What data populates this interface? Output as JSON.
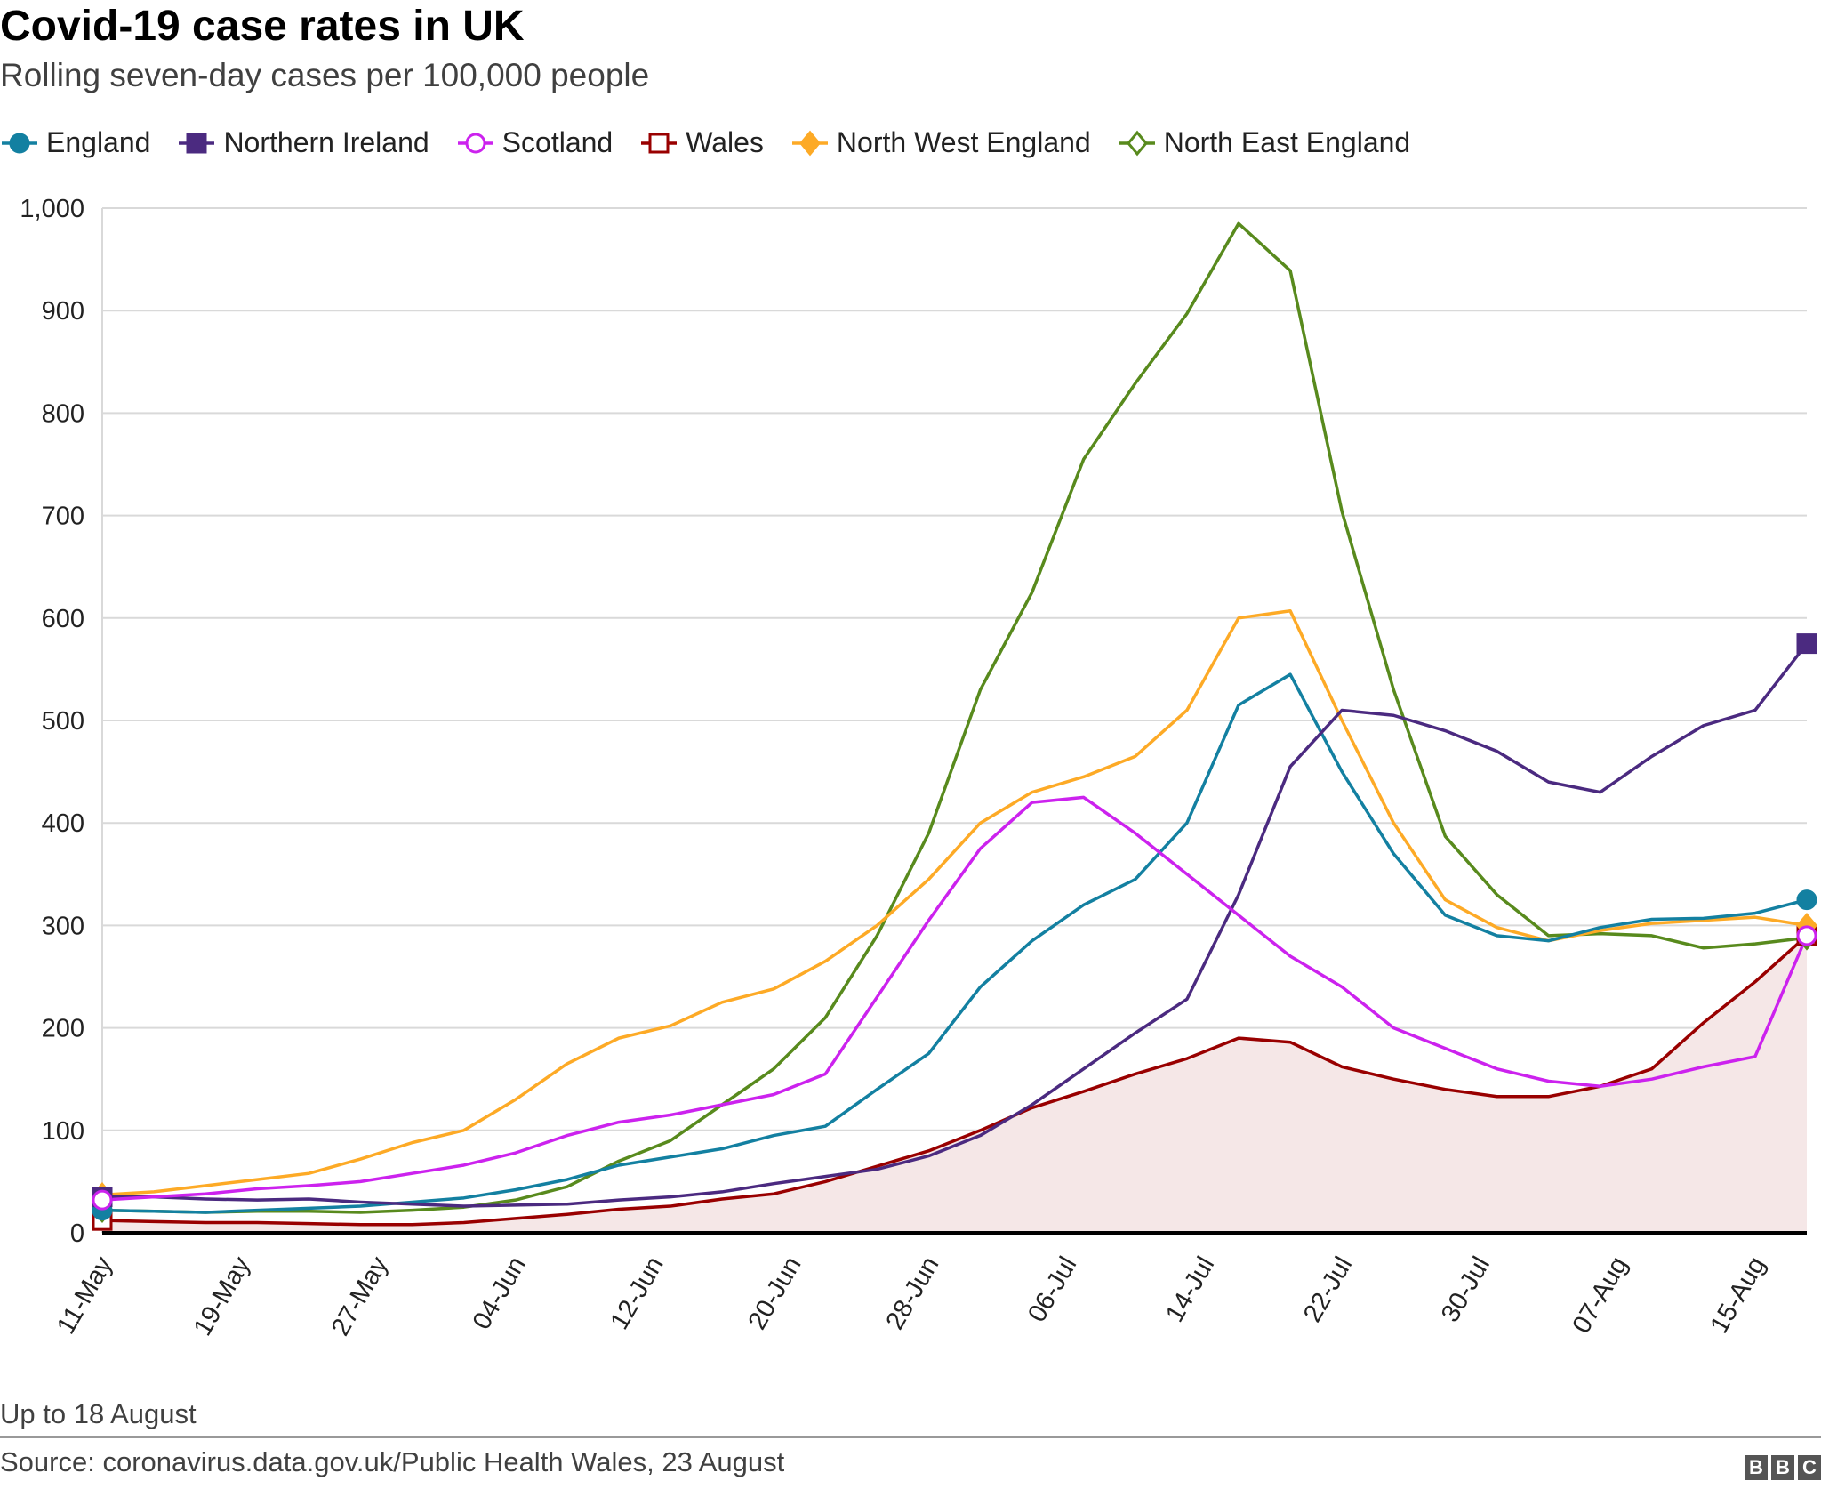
{
  "chart_data": {
    "type": "line",
    "title": "Covid-19 case rates in UK",
    "subtitle": "Rolling seven-day cases per 100,000 people",
    "note": "Up to 18 August",
    "source": "Source: coronavirus.data.gov.uk/Public Health Wales, 23 August",
    "logo": "BBC",
    "ylim": [
      0,
      1000
    ],
    "yticks": [
      0,
      100,
      200,
      300,
      400,
      500,
      600,
      700,
      800,
      900,
      1000
    ],
    "ytick_labels": [
      "0",
      "100",
      "200",
      "300",
      "400",
      "500",
      "600",
      "700",
      "800",
      "900",
      "1,000"
    ],
    "xlim": [
      "11-May",
      "18-Aug"
    ],
    "xtick_labels": [
      "11-May",
      "19-May",
      "27-May",
      "04-Jun",
      "12-Jun",
      "20-Jun",
      "28-Jun",
      "06-Jul",
      "14-Jul",
      "22-Jul",
      "30-Jul",
      "07-Aug",
      "15-Aug"
    ],
    "grid": true,
    "legend_position": "top",
    "x": [
      "11-May",
      "14-May",
      "17-May",
      "20-May",
      "23-May",
      "26-May",
      "29-May",
      "01-Jun",
      "04-Jun",
      "07-Jun",
      "10-Jun",
      "13-Jun",
      "16-Jun",
      "19-Jun",
      "22-Jun",
      "25-Jun",
      "28-Jun",
      "01-Jul",
      "04-Jul",
      "07-Jul",
      "10-Jul",
      "13-Jul",
      "16-Jul",
      "19-Jul",
      "22-Jul",
      "25-Jul",
      "28-Jul",
      "31-Jul",
      "03-Aug",
      "06-Aug",
      "09-Aug",
      "12-Aug",
      "15-Aug",
      "18-Aug"
    ],
    "series": [
      {
        "name": "England",
        "color": "#1380a1",
        "marker": "circle-filled",
        "values": [
          22,
          21,
          20,
          22,
          24,
          26,
          30,
          34,
          42,
          52,
          66,
          74,
          82,
          95,
          104,
          140,
          175,
          240,
          285,
          320,
          345,
          400,
          515,
          545,
          450,
          370,
          310,
          290,
          285,
          298,
          306,
          307,
          312,
          325
        ]
      },
      {
        "name": "Northern Ireland",
        "color": "#4b2a80",
        "marker": "square-filled",
        "values": [
          35,
          35,
          33,
          32,
          33,
          30,
          28,
          26,
          27,
          28,
          32,
          35,
          40,
          48,
          55,
          62,
          75,
          95,
          125,
          160,
          195,
          228,
          330,
          455,
          510,
          505,
          490,
          470,
          440,
          430,
          465,
          495,
          510,
          575
        ]
      },
      {
        "name": "Scotland",
        "color": "#cc22ee",
        "marker": "circle-open",
        "values": [
          32,
          35,
          38,
          43,
          46,
          50,
          58,
          66,
          78,
          95,
          108,
          115,
          125,
          135,
          155,
          230,
          305,
          375,
          420,
          425,
          390,
          350,
          310,
          270,
          240,
          200,
          180,
          160,
          148,
          143,
          150,
          162,
          172,
          290
        ]
      },
      {
        "name": "Wales",
        "color": "#990000",
        "marker": "square-open",
        "fill": "#f5e7e7",
        "values": [
          12,
          11,
          10,
          10,
          9,
          8,
          8,
          10,
          14,
          18,
          23,
          26,
          33,
          38,
          50,
          65,
          80,
          100,
          122,
          138,
          155,
          170,
          190,
          186,
          162,
          150,
          140,
          133,
          133,
          143,
          160,
          205,
          245,
          290
        ]
      },
      {
        "name": "North West England",
        "color": "#fdaa26",
        "marker": "diamond-filled",
        "values": [
          37,
          40,
          46,
          52,
          58,
          72,
          88,
          100,
          130,
          165,
          190,
          202,
          225,
          238,
          265,
          300,
          345,
          400,
          430,
          445,
          465,
          510,
          600,
          607,
          500,
          400,
          325,
          298,
          285,
          295,
          302,
          305,
          308,
          300
        ]
      },
      {
        "name": "North East England",
        "color": "#588a1d",
        "marker": "diamond-open",
        "values": [
          22,
          21,
          20,
          21,
          21,
          20,
          22,
          25,
          32,
          45,
          70,
          90,
          125,
          160,
          210,
          290,
          390,
          530,
          625,
          755,
          829,
          897,
          985,
          939,
          704,
          530,
          387,
          330,
          290,
          292,
          290,
          278,
          282,
          288
        ]
      }
    ]
  }
}
